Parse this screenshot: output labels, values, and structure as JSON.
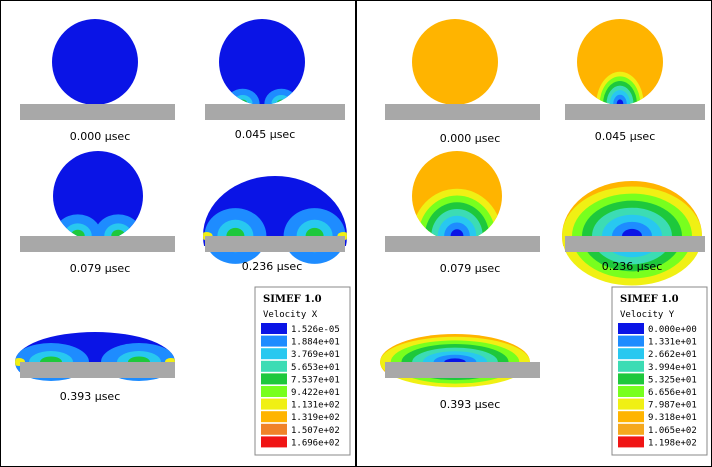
{
  "panels": [
    {
      "frames": [
        "0.000 µsec",
        "0.045 µsec",
        "0.079 µsec",
        "0.236 µsec",
        "0.393 µsec"
      ],
      "legend": {
        "title": "SIMEF 1.0",
        "variable": "Velocity X",
        "values": [
          "1.526e-05",
          "1.884e+01",
          "3.769e+01",
          "5.653e+01",
          "7.537e+01",
          "9.422e+01",
          "1.131e+02",
          "1.319e+02",
          "1.507e+02",
          "1.696e+02"
        ],
        "colors": [
          "#0a14e6",
          "#1e8cff",
          "#28c8f0",
          "#3cdcb4",
          "#1ec83c",
          "#78ff1e",
          "#f0f014",
          "#ffb400",
          "#f08228",
          "#f01414"
        ]
      }
    },
    {
      "frames": [
        "0.000 µsec",
        "0.045 µsec",
        "0.079 µsec",
        "0.236 µsec",
        "0.393 µsec"
      ],
      "legend": {
        "title": "SIMEF 1.0",
        "variable": "Velocity Y",
        "values": [
          "0.000e+00",
          "1.331e+01",
          "2.662e+01",
          "3.994e+01",
          "5.325e+01",
          "6.656e+01",
          "7.987e+01",
          "9.318e+01",
          "1.065e+02",
          "1.198e+02"
        ],
        "colors": [
          "#0a14e6",
          "#1e8cff",
          "#28c8f0",
          "#3cdcb4",
          "#1ec83c",
          "#78ff1e",
          "#f0f014",
          "#ffb400",
          "#f5a81e",
          "#f01414"
        ]
      }
    }
  ]
}
